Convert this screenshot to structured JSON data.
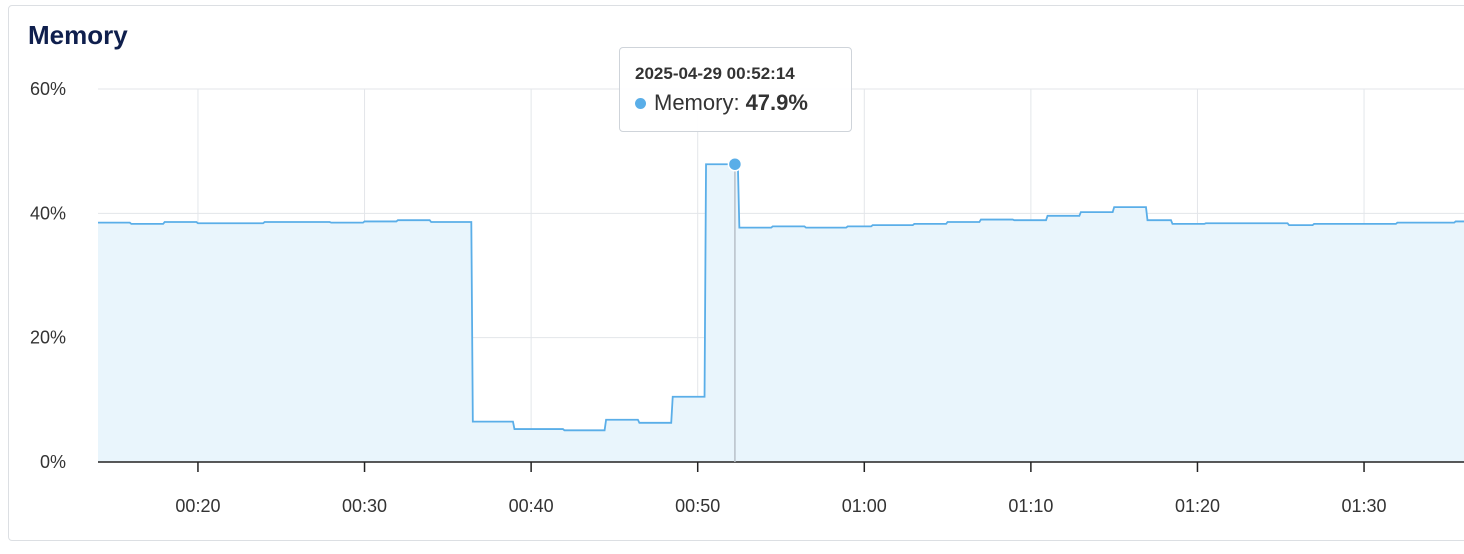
{
  "panel": {
    "title": "Memory"
  },
  "tooltip": {
    "time": "2025-04-29 00:52:14",
    "series_label": "Memory:",
    "value": "47.9%"
  },
  "colors": {
    "line": "#5aaee8",
    "fill": "#e9f5fc",
    "grid": "#e3e6ea",
    "axis": "#222222",
    "tooltip_dot": "#5aaee8"
  },
  "chart_data": {
    "type": "area",
    "title": "Memory",
    "y_unit": "%",
    "ylim": [
      0,
      60
    ],
    "y_ticks": [
      {
        "value": 0,
        "label": "0%"
      },
      {
        "value": 20,
        "label": "20%"
      },
      {
        "value": 40,
        "label": "40%"
      },
      {
        "value": 60,
        "label": "60%"
      }
    ],
    "x_range_minutes": [
      "00:14",
      "01:36"
    ],
    "x_ticks": [
      "00:20",
      "00:30",
      "00:40",
      "00:50",
      "01:00",
      "01:10",
      "01:20",
      "01:30"
    ],
    "grid": true,
    "series": [
      {
        "values_step": [
          {
            "t": "00:14",
            "y": 38.5
          },
          {
            "t": "00:16",
            "y": 38.3
          },
          {
            "t": "00:18",
            "y": 38.6
          },
          {
            "t": "00:20",
            "y": 38.4
          },
          {
            "t": "00:24",
            "y": 38.6
          },
          {
            "t": "00:28",
            "y": 38.5
          },
          {
            "t": "00:30",
            "y": 38.7
          },
          {
            "t": "00:32",
            "y": 38.9
          },
          {
            "t": "00:34",
            "y": 38.6
          },
          {
            "t": "00:36.5",
            "y": 6.5
          },
          {
            "t": "00:39",
            "y": 5.3
          },
          {
            "t": "00:42",
            "y": 5.1
          },
          {
            "t": "00:44.5",
            "y": 6.8
          },
          {
            "t": "00:46.5",
            "y": 6.3
          },
          {
            "t": "00:48.5",
            "y": 10.5
          },
          {
            "t": "00:50.5",
            "y": 47.9
          },
          {
            "t": "00:52.5",
            "y": 37.7
          },
          {
            "t": "00:54.5",
            "y": 37.9
          },
          {
            "t": "00:56.5",
            "y": 37.7
          },
          {
            "t": "00:59",
            "y": 37.9
          },
          {
            "t": "01:00.5",
            "y": 38.1
          },
          {
            "t": "01:03",
            "y": 38.3
          },
          {
            "t": "01:05",
            "y": 38.6
          },
          {
            "t": "01:07",
            "y": 39.0
          },
          {
            "t": "01:09",
            "y": 38.9
          },
          {
            "t": "01:11",
            "y": 39.6
          },
          {
            "t": "01:13",
            "y": 40.2
          },
          {
            "t": "01:15",
            "y": 41.0
          },
          {
            "t": "01:17",
            "y": 38.9
          },
          {
            "t": "01:18.5",
            "y": 38.3
          },
          {
            "t": "01:20.5",
            "y": 38.4
          },
          {
            "t": "01:25.5",
            "y": 38.1
          },
          {
            "t": "01:27",
            "y": 38.3
          },
          {
            "t": "01:32",
            "y": 38.5
          },
          {
            "t": "01:35.5",
            "y": 38.7
          }
        ]
      }
    ],
    "hover_point": {
      "t": "00:52:14",
      "y": 47.9
    }
  }
}
